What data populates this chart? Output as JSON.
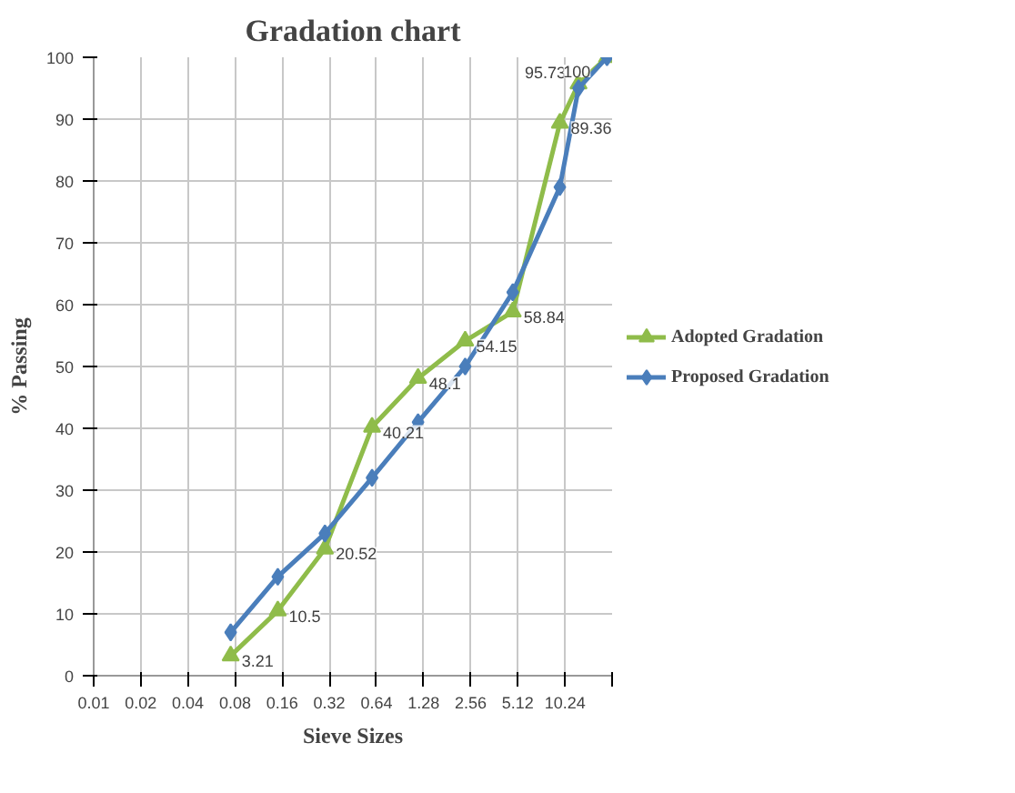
{
  "chart_data": {
    "type": "line",
    "title": "Gradation chart",
    "xlabel": "Sieve Sizes",
    "ylabel": "% Passing",
    "log": "x",
    "grid": true,
    "legend": "right",
    "xlim": [
      0.01,
      20.48
    ],
    "ylim": [
      0,
      100
    ],
    "xticks": [
      0.01,
      0.02,
      0.04,
      0.08,
      0.16,
      0.32,
      0.64,
      1.28,
      2.56,
      5.12,
      10.24,
      {
        "value": 20.48,
        "label": null
      }
    ],
    "yticks": [
      0,
      10,
      20,
      30,
      40,
      50,
      60,
      70,
      80,
      90,
      100
    ],
    "x": [
      0.075,
      0.15,
      0.3,
      0.6,
      1.18,
      2.36,
      4.75,
      9.5,
      12.5,
      19
    ],
    "series": [
      {
        "name": "Adopted Gradation",
        "color": "#8fbc4a",
        "marker": "triangle",
        "values": [
          3.21,
          10.5,
          20.52,
          40.21,
          48.1,
          54.15,
          58.84,
          89.36,
          95.73,
          100
        ],
        "value_labels": [
          "3.21",
          "10.5",
          "20.52",
          "40.21",
          "48.1",
          "54.15",
          "58.84",
          "89.36",
          "95.73",
          "100"
        ]
      },
      {
        "name": "Proposed Gradation",
        "color": "#4a7ebb",
        "marker": "diamond",
        "values": [
          7,
          16,
          23,
          32,
          41,
          50,
          62,
          79,
          95,
          100
        ]
      }
    ]
  }
}
